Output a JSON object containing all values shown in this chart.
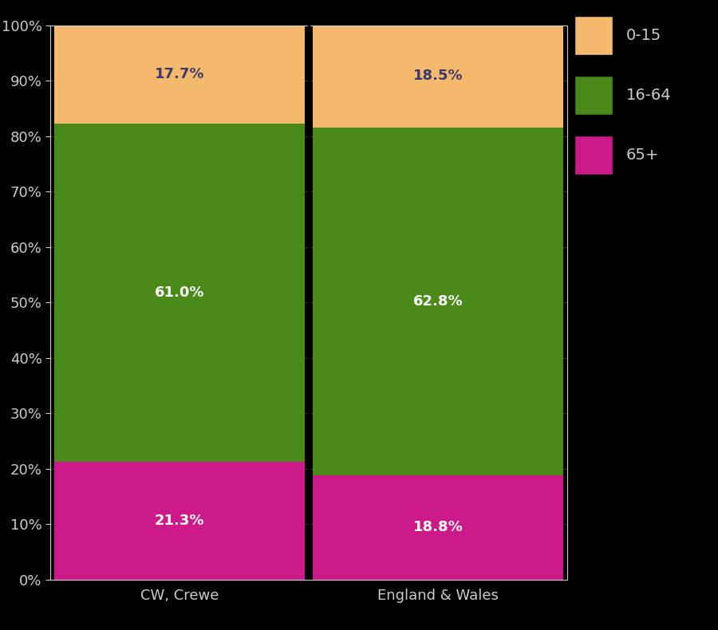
{
  "categories": [
    "CW, Crewe",
    "England & Wales"
  ],
  "segments": {
    "65+": [
      21.3,
      18.8
    ],
    "16-64": [
      61.0,
      62.8
    ],
    "0-15": [
      17.7,
      18.5
    ]
  },
  "colors": {
    "65+": "#cc1a8a",
    "16-64": "#4a8a1a",
    "0-15": "#f5b96e"
  },
  "label_colors": {
    "65+": "white",
    "16-64": "white",
    "0-15": "#3a3a6a"
  },
  "background_color": "#000000",
  "text_color": "#cccccc",
  "bar_width": 0.97,
  "ylim": [
    0,
    100
  ],
  "yticks": [
    0,
    10,
    20,
    30,
    40,
    50,
    60,
    70,
    80,
    90,
    100
  ],
  "ytick_labels": [
    "0%",
    "10%",
    "20%",
    "30%",
    "40%",
    "50%",
    "60%",
    "70%",
    "80%",
    "90%",
    "100%"
  ],
  "legend_labels": [
    "0-15",
    "16-64",
    "65+"
  ],
  "legend_colors": [
    "#f5b96e",
    "#4a8a1a",
    "#cc1a8a"
  ],
  "label_fontsize": 13,
  "tick_fontsize": 13,
  "legend_fontsize": 14,
  "divider_color": "#000000",
  "divider_linewidth": 2.5
}
